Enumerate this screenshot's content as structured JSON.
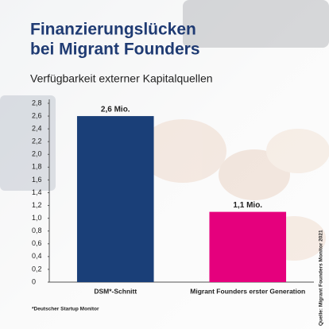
{
  "chart_data": {
    "type": "bar",
    "title": [
      "Finanzierungslücken",
      "bei Migrant Founders"
    ],
    "subtitle": "Verfügbarkeit externer Kapitalquellen",
    "categories": [
      "DSM*-Schnitt",
      "Migrant Founders erster Generation"
    ],
    "values": [
      2.6,
      1.1
    ],
    "value_labels": [
      "2,6 Mio.",
      "1,1 Mio."
    ],
    "colors": [
      "#1a3f78",
      "#e5007d"
    ],
    "ylim": [
      0,
      2.8
    ],
    "yticks": [
      0,
      {
        "value": 0.2,
        "label": "0,2"
      },
      {
        "value": 0.4,
        "label": "0,4"
      },
      {
        "value": 0.6,
        "label": "0,6"
      },
      {
        "value": 0.8,
        "label": "0,8"
      },
      {
        "value": 1.0,
        "label": "1,0"
      },
      {
        "value": 1.2,
        "label": "1,2"
      },
      {
        "value": 1.4,
        "label": "1,4"
      },
      {
        "value": 1.6,
        "label": "1,6"
      },
      {
        "value": 1.8,
        "label": "1,8"
      },
      {
        "value": 2.0,
        "label": "2,0"
      },
      {
        "value": 2.2,
        "label": "2,2"
      },
      {
        "value": 2.4,
        "label": "2,4"
      },
      {
        "value": 2.6,
        "label": "2,6"
      },
      {
        "value": 2.8,
        "label": "2,8"
      }
    ],
    "footnote": "*Deutscher Startup Monitor",
    "source": "Quelle: Migrant Founders Monitor 2021",
    "grid": false
  }
}
